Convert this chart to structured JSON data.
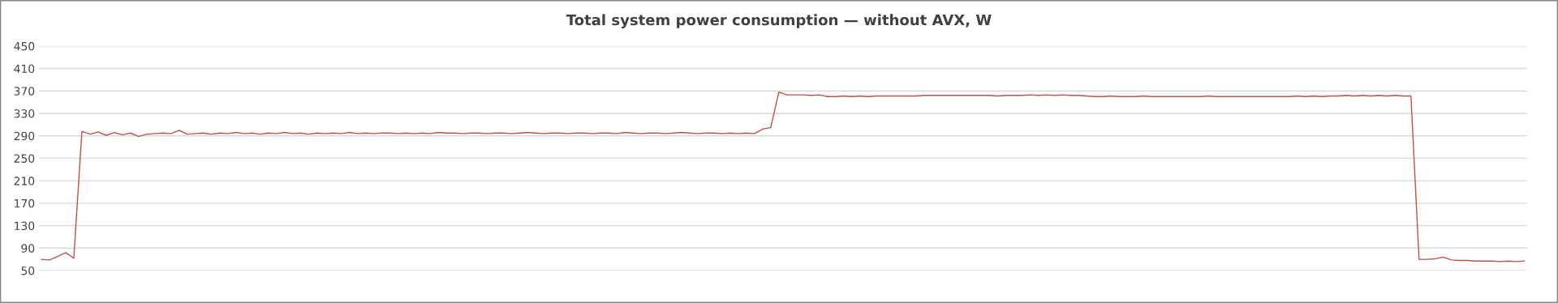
{
  "chart_data": {
    "type": "line",
    "title": "Total system power consumption — without AVX, W",
    "categories": [
      null,
      null,
      null,
      null,
      null,
      null,
      null,
      null,
      null,
      null,
      null,
      null,
      null,
      null,
      null,
      null,
      null,
      null,
      null,
      null,
      null,
      null,
      null,
      null,
      null,
      null,
      null,
      null,
      null,
      null,
      null,
      null,
      null,
      null,
      null,
      null,
      null,
      null,
      null,
      null,
      null,
      null,
      null,
      null,
      null,
      null,
      null,
      null,
      null,
      null,
      null,
      null,
      null,
      null,
      null,
      null,
      null,
      null,
      null,
      null,
      null,
      null,
      null,
      null,
      null,
      null,
      null,
      null,
      null,
      null,
      null,
      null,
      null,
      null,
      null,
      null,
      null,
      null,
      null,
      null,
      null,
      null,
      null,
      null,
      null,
      null,
      null,
      null,
      null,
      null,
      null,
      null,
      null,
      null,
      null,
      null,
      null,
      null,
      null,
      null,
      null,
      null,
      null,
      null,
      null,
      null,
      null,
      null,
      null,
      null,
      null,
      null,
      null,
      null,
      null,
      null,
      null,
      null,
      null,
      null,
      null,
      null,
      null,
      null,
      null,
      null,
      null,
      null,
      null,
      null,
      null,
      null,
      null,
      null,
      null,
      null,
      null,
      null,
      null,
      null,
      null,
      null,
      null,
      null,
      null,
      null,
      null,
      null,
      null,
      null,
      null,
      null,
      null,
      null,
      null,
      null,
      null,
      null,
      null,
      null,
      null,
      null,
      null,
      null,
      null,
      null,
      null,
      null,
      null,
      null,
      null,
      null,
      null,
      null,
      null,
      null,
      null,
      null,
      null,
      null,
      null,
      null,
      null,
      null
    ],
    "series": [
      {
        "color": "#c0504d",
        "values": [
          70,
          69,
          75,
          82,
          72,
          298,
          293,
          297,
          291,
          296,
          292,
          295,
          289,
          293,
          294,
          295,
          294,
          300,
          293,
          294,
          295,
          293,
          295,
          294,
          296,
          294,
          295,
          293,
          295,
          294,
          296,
          294,
          295,
          293,
          295,
          294,
          295,
          294,
          296,
          294,
          295,
          294,
          295,
          295,
          294,
          295,
          294,
          295,
          294,
          296,
          295,
          295,
          294,
          295,
          295,
          294,
          295,
          295,
          294,
          295,
          296,
          295,
          294,
          295,
          295,
          294,
          295,
          295,
          294,
          295,
          295,
          294,
          296,
          295,
          294,
          295,
          295,
          294,
          295,
          296,
          295,
          294,
          295,
          295,
          294,
          295,
          294,
          295,
          294,
          302,
          305,
          368,
          363,
          363,
          363,
          362,
          363,
          360,
          360,
          361,
          360,
          361,
          360,
          361,
          361,
          361,
          361,
          361,
          361,
          362,
          362,
          362,
          362,
          362,
          362,
          362,
          362,
          362,
          361,
          362,
          362,
          362,
          363,
          362,
          363,
          362,
          363,
          362,
          362,
          361,
          360,
          360,
          361,
          360,
          360,
          360,
          361,
          360,
          360,
          360,
          360,
          360,
          360,
          360,
          361,
          360,
          360,
          360,
          360,
          360,
          360,
          360,
          360,
          360,
          360,
          361,
          360,
          361,
          360,
          361,
          361,
          362,
          361,
          362,
          361,
          362,
          361,
          362,
          361,
          361,
          70,
          70,
          71,
          74,
          69,
          68,
          68,
          67,
          67,
          67,
          66,
          67,
          66,
          67
        ]
      }
    ],
    "ylim": [
      50,
      450
    ],
    "yticks": [
      50,
      90,
      130,
      170,
      210,
      250,
      290,
      330,
      370,
      410,
      450
    ],
    "grid": "y",
    "legend": false,
    "marker": "none",
    "line_style": "solid"
  }
}
